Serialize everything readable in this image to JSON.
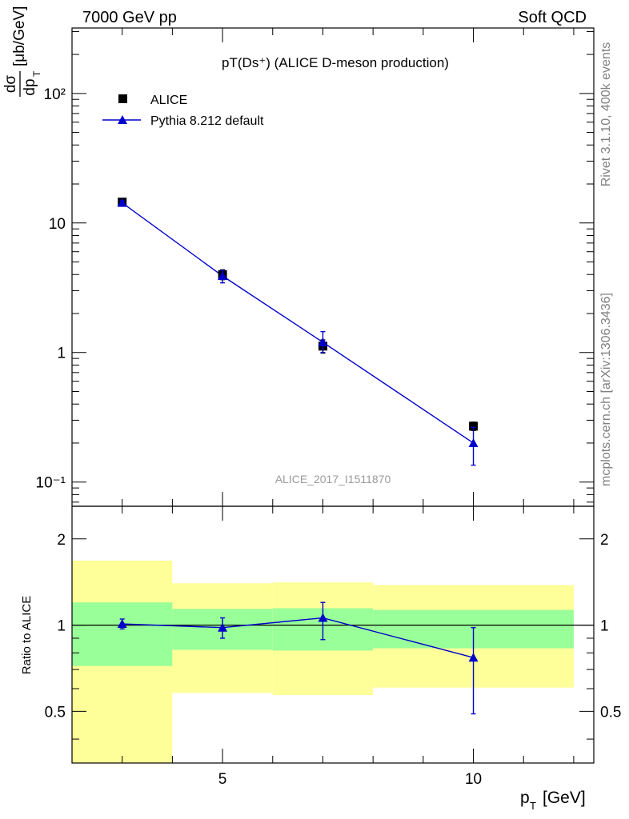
{
  "header": {
    "left_label": "7000 GeV pp",
    "right_label": "Soft QCD"
  },
  "side_labels": {
    "rivet": "Rivet 3.1.10,  400k events",
    "mcplots": "mcplots.cern.ch [arXiv:1306.3436]"
  },
  "chart_data": [
    {
      "type": "scatter",
      "title": "pT(Ds⁺) (ALICE D-meson production)",
      "ylabel": "dσ/dp_T [μb/GeV]",
      "xlabel": "",
      "yscale": "log",
      "xlim": [
        2,
        12.4
      ],
      "ylim": [
        0.065,
        320
      ],
      "y_ticks": [
        {
          "value": 0.1,
          "label": "10⁻¹"
        },
        {
          "value": 1,
          "label": "1"
        },
        {
          "value": 10,
          "label": "10"
        },
        {
          "value": 100,
          "label": "10²"
        }
      ],
      "watermark": "ALICE_2017_I1511870",
      "legend_position": "top-left",
      "series": [
        {
          "name": "ALICE",
          "marker": "square",
          "color": "#000000",
          "x": [
            3,
            5,
            7,
            10
          ],
          "y": [
            14.5,
            4.0,
            1.12,
            0.27
          ],
          "err_low": [
            0.8,
            0.35,
            0.13,
            0.02
          ],
          "err_high": [
            0.8,
            0.35,
            0.13,
            0.02
          ]
        },
        {
          "name": "Pythia 8.212 default",
          "marker": "triangle",
          "color": "#0000cc",
          "x": [
            3,
            5,
            7,
            10
          ],
          "y": [
            14.3,
            3.9,
            1.2,
            0.2
          ],
          "err_low": [
            0.6,
            0.45,
            0.2,
            0.065
          ],
          "err_high": [
            0.6,
            0.4,
            0.25,
            0.065
          ]
        }
      ]
    },
    {
      "type": "scatter",
      "ylabel": "Ratio to ALICE",
      "xlabel": "p_T [GeV]",
      "yscale": "log",
      "xlim": [
        2,
        12.4
      ],
      "ylim": [
        0.33,
        2.6
      ],
      "x_ticks": [
        {
          "value": 5,
          "label": "5"
        },
        {
          "value": 10,
          "label": "10"
        }
      ],
      "y_ticks": [
        {
          "value": 0.5,
          "label": "0.5"
        },
        {
          "value": 1,
          "label": "1"
        },
        {
          "value": 2,
          "label": "2"
        }
      ],
      "bands": [
        {
          "x0": 2,
          "x1": 4,
          "yellow": [
            0.33,
            1.68
          ],
          "green": [
            0.72,
            1.2
          ]
        },
        {
          "x0": 4,
          "x1": 6,
          "yellow": [
            0.58,
            1.4
          ],
          "green": [
            0.82,
            1.14
          ]
        },
        {
          "x0": 6,
          "x1": 8,
          "yellow": [
            0.57,
            1.41
          ],
          "green": [
            0.815,
            1.145
          ]
        },
        {
          "x0": 8,
          "x1": 12,
          "yellow": [
            0.605,
            1.38
          ],
          "green": [
            0.83,
            1.13
          ]
        }
      ],
      "series": [
        {
          "name": "Pythia 8.212 default",
          "color": "#0000cc",
          "x": [
            3,
            5,
            7,
            10
          ],
          "y": [
            1.01,
            0.98,
            1.06,
            0.77
          ],
          "err_low": [
            0.04,
            0.08,
            0.17,
            0.28
          ],
          "err_high": [
            0.04,
            0.08,
            0.14,
            0.21
          ]
        }
      ]
    }
  ]
}
